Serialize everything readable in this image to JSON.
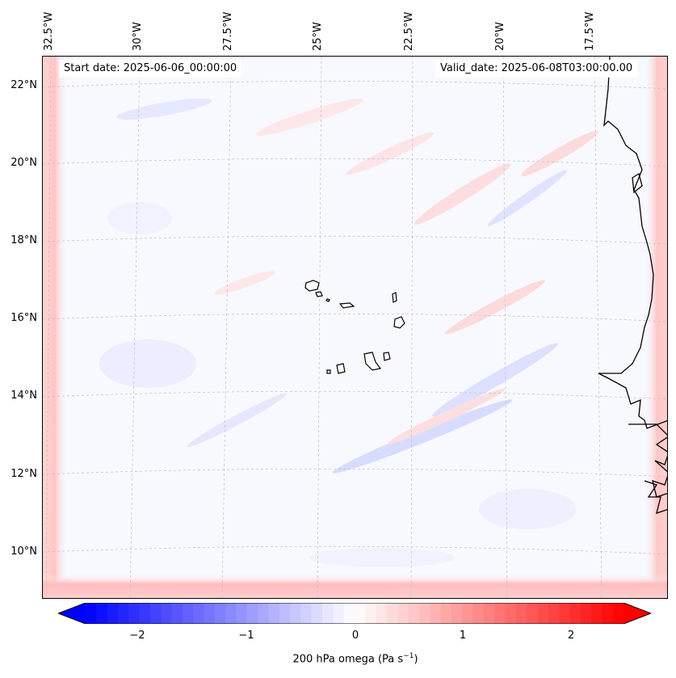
{
  "header": {
    "start_date": "Start date: 2025-06-06_00:00:00",
    "valid_date": "Valid_date: 2025-06-08T03:00:00.00"
  },
  "axes": {
    "lon_labels": [
      "32.5°W",
      "30°W",
      "27.5°W",
      "25°W",
      "22.5°W",
      "20°W",
      "17.5°W"
    ],
    "lat_labels": [
      "22°N",
      "20°N",
      "18°N",
      "16°N",
      "14°N",
      "12°N",
      "10°N"
    ]
  },
  "colorbar": {
    "ticks": [
      "−2",
      "−1",
      "0",
      "1",
      "2"
    ],
    "label_main": "200 hPa omega (Pa s",
    "label_sup": "−1",
    "label_end": ")",
    "min": -2.7,
    "max": 2.7,
    "color_low": "#0000ff",
    "color_mid": "#ffffff",
    "color_high": "#ff0000"
  },
  "map": {
    "background": "#f8f8ff",
    "coastline_color": "#000000"
  }
}
